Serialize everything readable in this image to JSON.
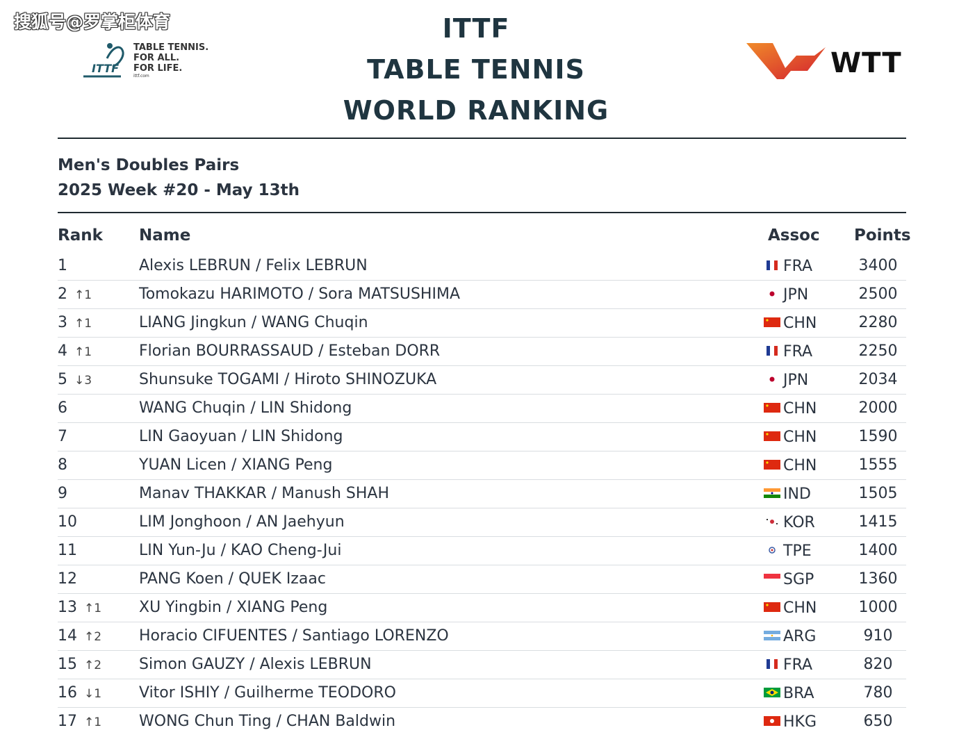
{
  "watermark": "搜狐号@罗掌柜体育",
  "ittf_logo": {
    "mark_text": "ITTF",
    "line1": "TABLE TENNIS.",
    "line2": "FOR ALL.",
    "line3": "FOR LIFE.",
    "url": "ittf.com"
  },
  "title": {
    "line1": "ITTF",
    "line2": "TABLE TENNIS",
    "line3": "WORLD RANKING"
  },
  "wtt_logo": {
    "text": "WTT"
  },
  "subtitle": {
    "category": "Men's Doubles Pairs",
    "week": "2025 Week #20 - May 13th"
  },
  "table": {
    "headers": {
      "rank": "Rank",
      "name": "Name",
      "assoc": "Assoc",
      "points": "Points"
    },
    "rows": [
      {
        "rank": "1",
        "move": "",
        "name": "Alexis LEBRUN / Felix LEBRUN",
        "flag": "fra",
        "assoc": "FRA",
        "points": "3400"
      },
      {
        "rank": "2",
        "move": "↑1",
        "name": "Tomokazu HARIMOTO / Sora MATSUSHIMA",
        "flag": "jpn",
        "assoc": "JPN",
        "points": "2500"
      },
      {
        "rank": "3",
        "move": "↑1",
        "name": "LIANG Jingkun / WANG Chuqin",
        "flag": "chn",
        "assoc": "CHN",
        "points": "2280"
      },
      {
        "rank": "4",
        "move": "↑1",
        "name": "Florian BOURRASSAUD / Esteban DORR",
        "flag": "fra",
        "assoc": "FRA",
        "points": "2250"
      },
      {
        "rank": "5",
        "move": "↓3",
        "name": "Shunsuke TOGAMI / Hiroto SHINOZUKA",
        "flag": "jpn",
        "assoc": "JPN",
        "points": "2034"
      },
      {
        "rank": "6",
        "move": "",
        "name": "WANG Chuqin / LIN Shidong",
        "flag": "chn",
        "assoc": "CHN",
        "points": "2000"
      },
      {
        "rank": "7",
        "move": "",
        "name": "LIN Gaoyuan / LIN Shidong",
        "flag": "chn",
        "assoc": "CHN",
        "points": "1590"
      },
      {
        "rank": "8",
        "move": "",
        "name": "YUAN Licen / XIANG Peng",
        "flag": "chn",
        "assoc": "CHN",
        "points": "1555"
      },
      {
        "rank": "9",
        "move": "",
        "name": "Manav THAKKAR / Manush SHAH",
        "flag": "ind",
        "assoc": "IND",
        "points": "1505"
      },
      {
        "rank": "10",
        "move": "",
        "name": "LIM Jonghoon / AN Jaehyun",
        "flag": "kor",
        "assoc": "KOR",
        "points": "1415"
      },
      {
        "rank": "11",
        "move": "",
        "name": "LIN Yun-Ju / KAO Cheng-Jui",
        "flag": "tpe",
        "assoc": "TPE",
        "points": "1400"
      },
      {
        "rank": "12",
        "move": "",
        "name": "PANG Koen / QUEK Izaac",
        "flag": "sgp",
        "assoc": "SGP",
        "points": "1360"
      },
      {
        "rank": "13",
        "move": "↑1",
        "name": "XU Yingbin / XIANG Peng",
        "flag": "chn",
        "assoc": "CHN",
        "points": "1000"
      },
      {
        "rank": "14",
        "move": "↑2",
        "name": "Horacio CIFUENTES / Santiago LORENZO",
        "flag": "arg",
        "assoc": "ARG",
        "points": "910"
      },
      {
        "rank": "15",
        "move": "↑2",
        "name": "Simon GAUZY / Alexis LEBRUN",
        "flag": "fra",
        "assoc": "FRA",
        "points": "820"
      },
      {
        "rank": "16",
        "move": "↓1",
        "name": "Vitor ISHIY / Guilherme TEODORO",
        "flag": "bra",
        "assoc": "BRA",
        "points": "780"
      },
      {
        "rank": "17",
        "move": "↑1",
        "name": "WONG Chun Ting / CHAN Baldwin",
        "flag": "hkg",
        "assoc": "HKG",
        "points": "650"
      }
    ]
  }
}
